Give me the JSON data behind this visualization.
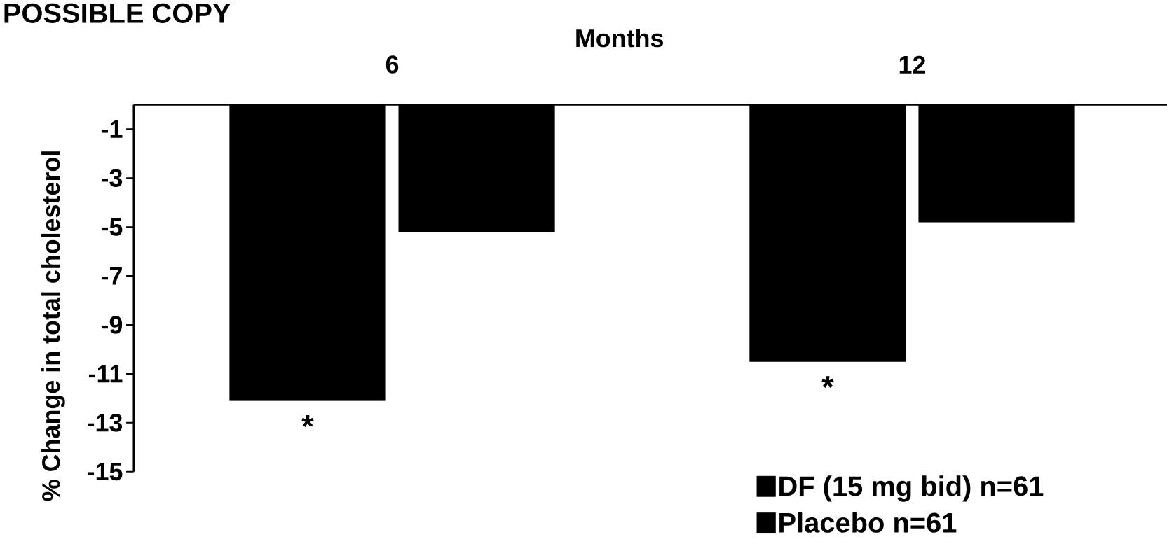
{
  "chart_data": {
    "type": "bar",
    "xlabel": "Months",
    "ylabel": "% Change in total cholesterol",
    "categories": [
      "6",
      "12"
    ],
    "series": [
      {
        "name": "DF (15 mg bid) n=61",
        "color": "#000000",
        "values": [
          -12.1,
          -10.5
        ]
      },
      {
        "name": "Placebo n=61",
        "color": "#000000",
        "values": [
          -5.2,
          -4.8
        ]
      }
    ],
    "ylim": [
      -15,
      0
    ],
    "yticks": [
      -1,
      -3,
      -5,
      -7,
      -9,
      -11,
      -13,
      -15
    ],
    "legend": "bottom right",
    "annotations": [
      "POSSIBLE COPY",
      "*",
      "*"
    ]
  }
}
